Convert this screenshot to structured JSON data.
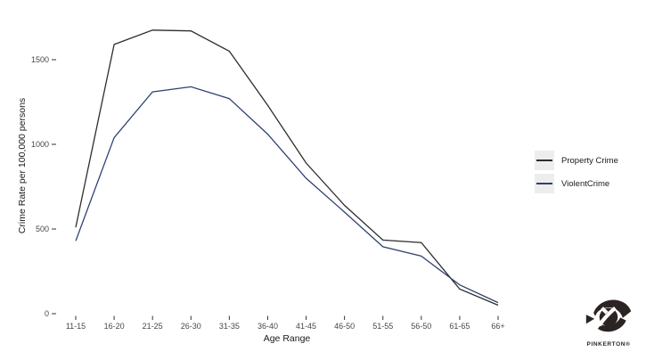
{
  "chart": {
    "y_axis_title": "Crime Rate per 100,000 persons",
    "x_axis_title": "Age Range"
  },
  "chart_data": {
    "type": "line",
    "categories": [
      "11-15",
      "16-20",
      "21-25",
      "26-30",
      "31-35",
      "36-40",
      "41-45",
      "46-50",
      "51-55",
      "56-50",
      "61-65",
      "66+"
    ],
    "series": [
      {
        "name": "Property Crime",
        "color": "#2d2d2d",
        "values": [
          510,
          1590,
          1675,
          1670,
          1550,
          1230,
          890,
          640,
          435,
          420,
          145,
          50
        ]
      },
      {
        "name": "ViolentCrime",
        "color": "#2e4172",
        "values": [
          430,
          1040,
          1310,
          1340,
          1270,
          1060,
          800,
          600,
          395,
          340,
          170,
          65
        ]
      }
    ],
    "title": "",
    "xlabel": "Age Range",
    "ylabel": "Crime Rate per 100,000 persons",
    "ylim": [
      0,
      1750
    ],
    "y_ticks": [
      0,
      500,
      1000,
      1500
    ],
    "grid": false,
    "legend_position": "right",
    "tick_color": "#333333",
    "tick_label_color": "#474747"
  },
  "branding": {
    "logo_text": "PINKERTON®"
  }
}
